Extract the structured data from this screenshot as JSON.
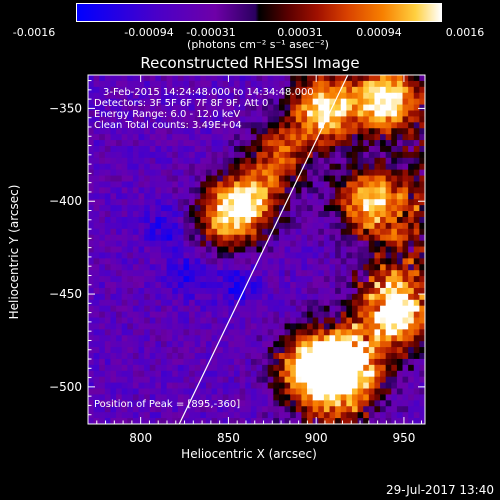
{
  "colorbar": {
    "ticks": [
      "-0.0016",
      "-0.00094",
      "-0.00031",
      "0.00031",
      "0.00094",
      "0.0016"
    ],
    "unit_label": "(photons cm⁻² s⁻¹ asec⁻²)"
  },
  "footer_date": "29-Jul-2017 13:40",
  "chart_data": {
    "type": "heatmap",
    "title": "Reconstructed RHESSI Image",
    "xlabel": "Heliocentric X (arcsec)",
    "ylabel": "Heliocentric Y (arcsec)",
    "xlim": [
      770,
      962
    ],
    "ylim": [
      -520,
      -332
    ],
    "xticks": [
      800,
      850,
      900,
      950
    ],
    "yticks": [
      -350,
      -400,
      -450,
      -500
    ],
    "colorbar_range": [
      -0.0016,
      0.0016
    ],
    "annotations": [
      "3-Feb-2015 14:24:48.000 to 14:34:48.000",
      "Detectors: 3F 5F 6F 7F 8F 9F, Att 0",
      "Energy Range: 6.0 - 12.0 keV",
      "Clean     Total counts: 3.49E+04"
    ],
    "peak_label": "Position of Peak = [895,-360]",
    "peak_position": [
      895,
      -360
    ],
    "limb_line": [
      [
        822,
        -520
      ],
      [
        918,
        -332
      ]
    ],
    "bright_sources": [
      {
        "x": 905,
        "y": -350,
        "intensity": 0.95
      },
      {
        "x": 940,
        "y": -345,
        "intensity": 1.0
      },
      {
        "x": 930,
        "y": -400,
        "intensity": 0.85
      },
      {
        "x": 915,
        "y": -490,
        "intensity": 0.95
      },
      {
        "x": 895,
        "y": -490,
        "intensity": 0.85
      },
      {
        "x": 862,
        "y": -400,
        "intensity": 0.7
      },
      {
        "x": 847,
        "y": -410,
        "intensity": 0.6
      },
      {
        "x": 880,
        "y": -375,
        "intensity": 0.55
      },
      {
        "x": 948,
        "y": -460,
        "intensity": 0.75
      }
    ],
    "negative_sources": [
      {
        "x": 815,
        "y": -415
      },
      {
        "x": 828,
        "y": -440
      },
      {
        "x": 855,
        "y": -445
      }
    ]
  }
}
